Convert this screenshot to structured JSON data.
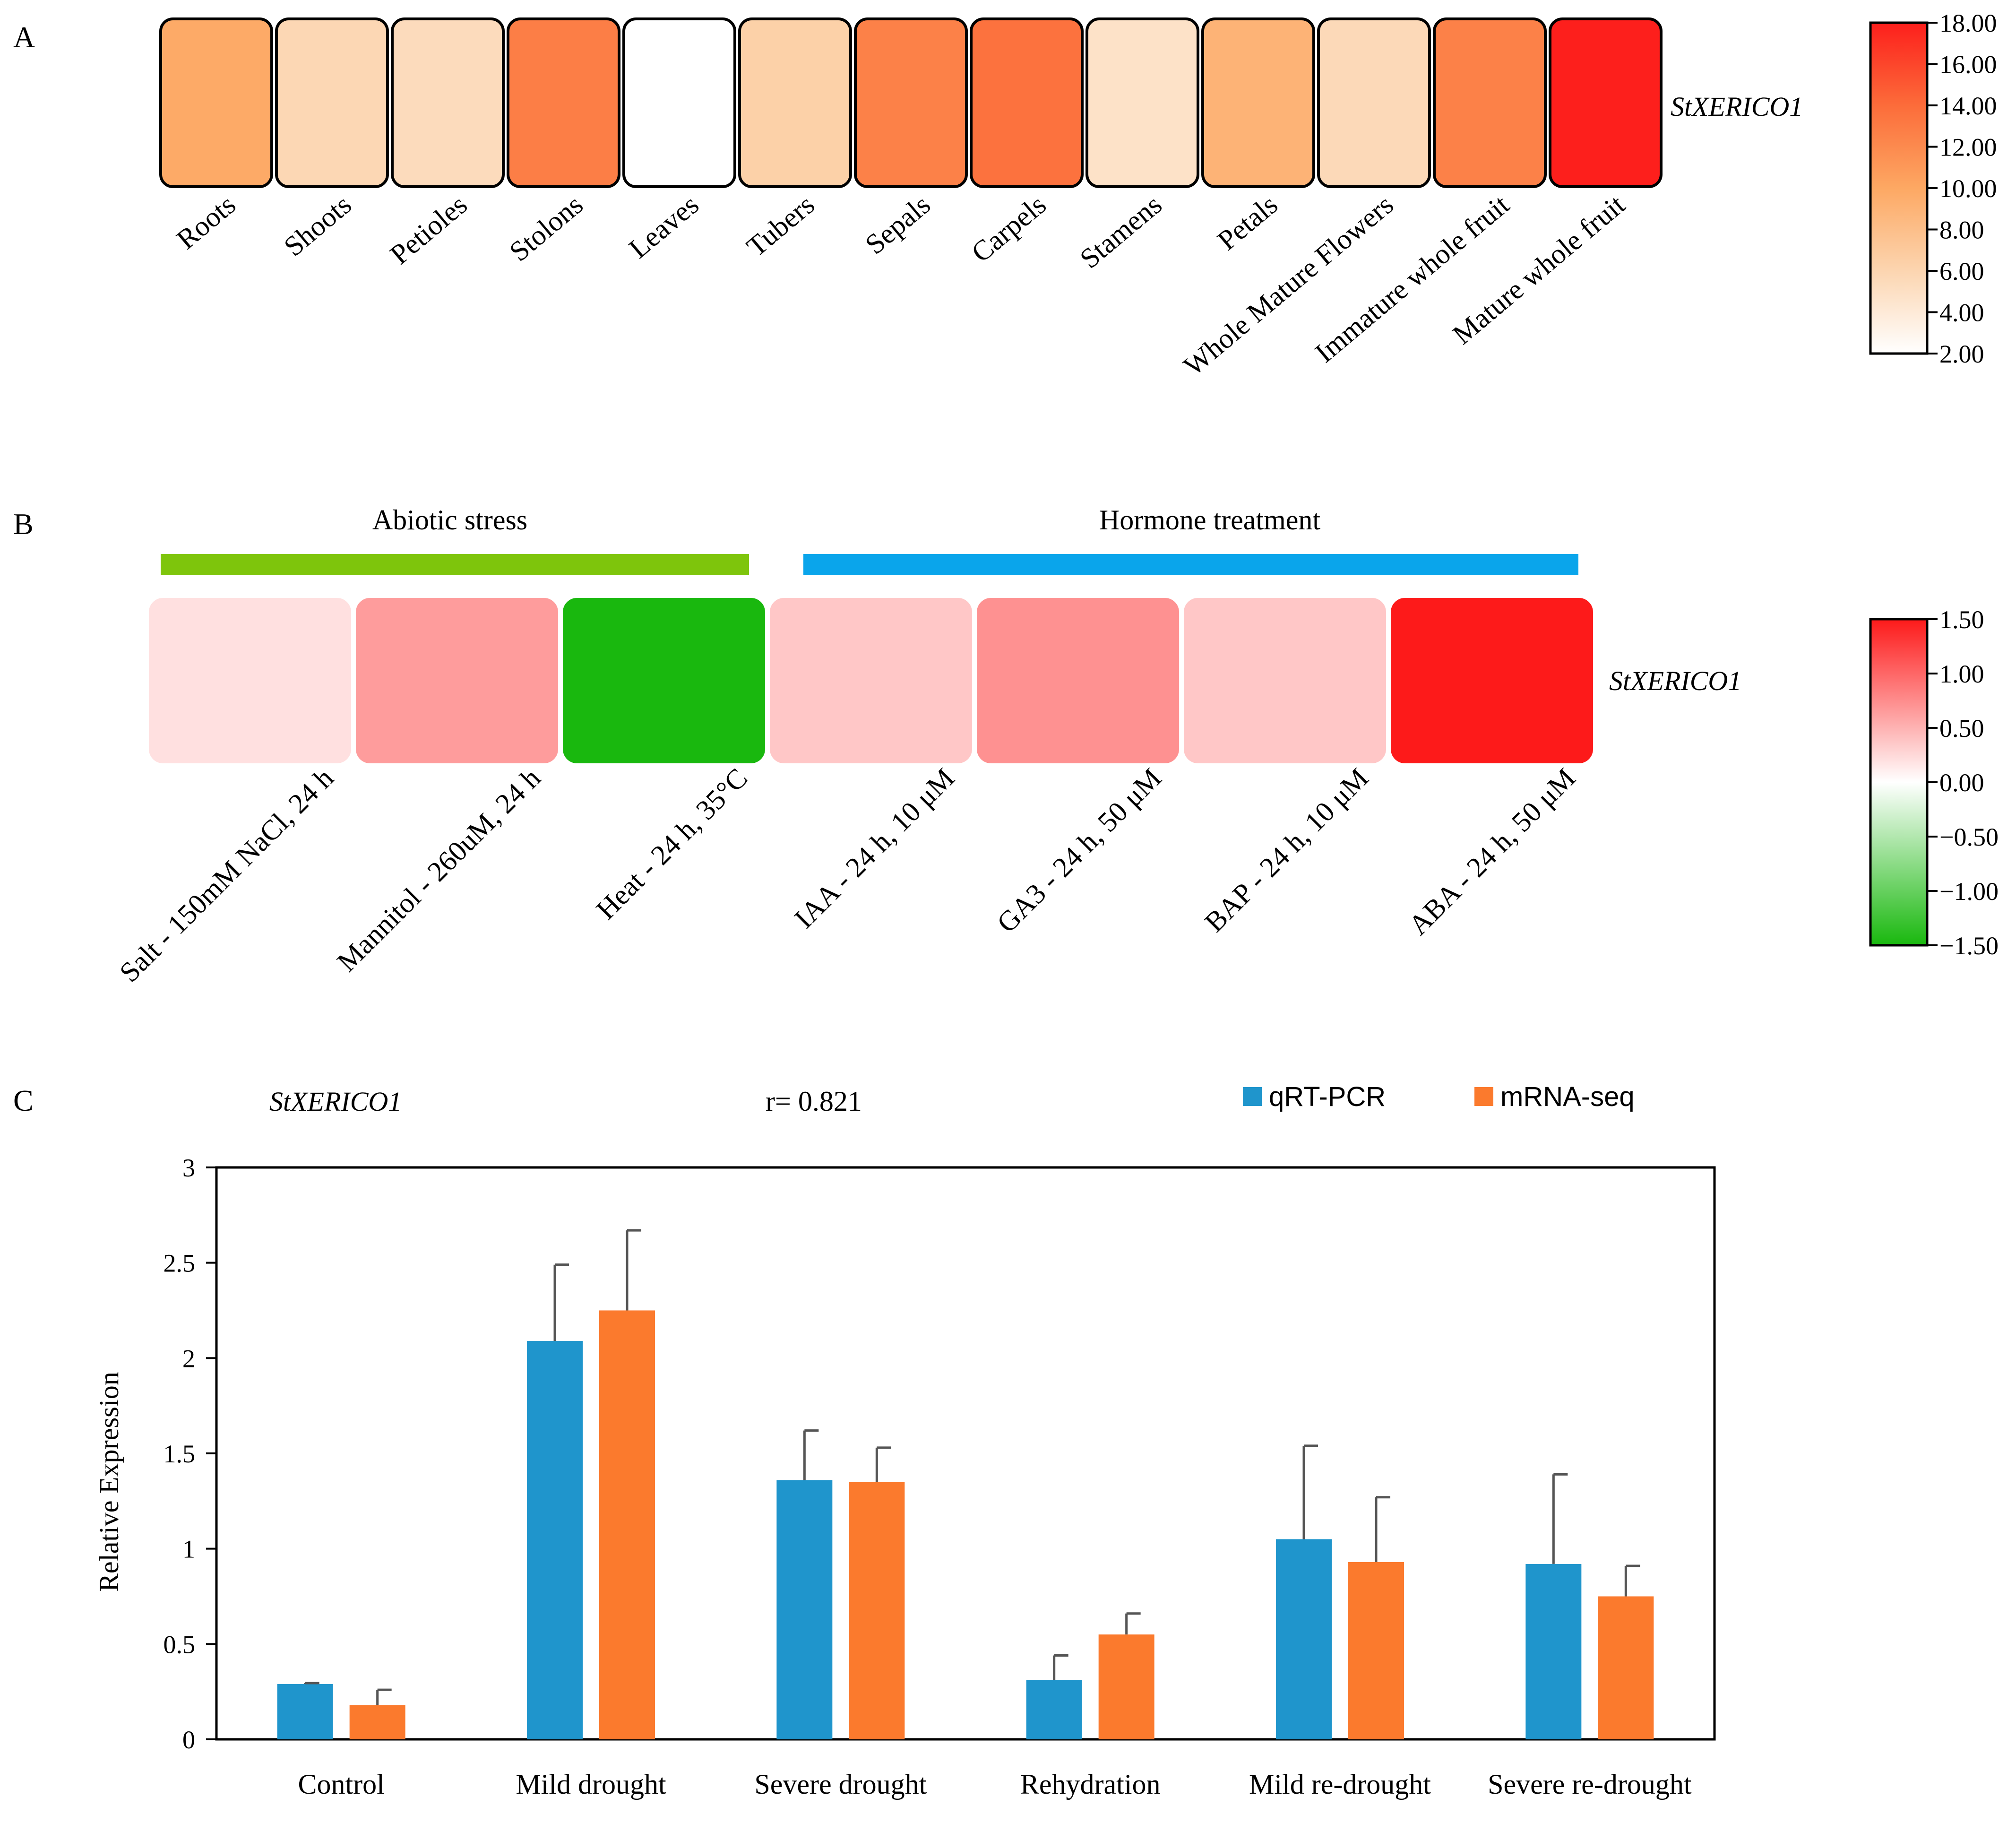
{
  "chart_data": [
    {
      "panel": "A",
      "type": "heatmap",
      "row_label": "StXERICO1",
      "categories": [
        "Roots",
        "Shoots",
        "Petioles",
        "Stolons",
        "Leaves",
        "Tubers",
        "Sepals",
        "Carpels",
        "Stamens",
        "Petals",
        "Whole Mature Flowers",
        "Immature whole fruit",
        "Mature whole fruit"
      ],
      "values": [
        9.8,
        5.8,
        5.4,
        12.8,
        2.0,
        6.4,
        12.6,
        13.6,
        4.8,
        9.0,
        5.6,
        12.6,
        18.0
      ],
      "colorbar": {
        "min": 2,
        "max": 18,
        "ticks": [
          "18.00",
          "16.00",
          "14.00",
          "12.00",
          "10.00",
          "8.00",
          "6.00",
          "4.00",
          "2.00"
        ],
        "colors": [
          "#ffffff",
          "#fcd5b0",
          "#fda863",
          "#fc6c3a",
          "#fd1f1c"
        ]
      }
    },
    {
      "panel": "B",
      "type": "heatmap",
      "row_label": "StXERICO1",
      "groups": [
        {
          "label": "Abiotic stress",
          "color": "#7ec50c"
        },
        {
          "label": "Hormone treatment",
          "color": "#0aa5eb"
        }
      ],
      "categories": [
        "Salt - 150mM NaCl, 24 h",
        "Mannitol - 260uM, 24 h",
        "Heat - 24 h, 35°C",
        "IAA - 24 h, 10 μM",
        "GA3 - 24 h, 50 μM",
        "BAP - 24 h, 10 μM",
        "ABA - 24 h, 50 μM"
      ],
      "values": [
        0.2,
        0.65,
        -1.5,
        0.37,
        0.72,
        0.37,
        1.5
      ],
      "colorbar": {
        "min": -1.5,
        "max": 1.5,
        "ticks": [
          "1.50",
          "1.00",
          "0.50",
          "0.00",
          "−0.50",
          "−1.00",
          "−1.50"
        ],
        "colors": [
          "#19b80e",
          "#ffffff",
          "#fd1a1a"
        ]
      }
    },
    {
      "panel": "C",
      "type": "bar",
      "title": "StXERICO1",
      "annotation": "r= 0.821",
      "xlabel": "",
      "ylabel": "Relative Expression",
      "ylim": [
        0,
        3
      ],
      "yticks": [
        "0",
        "0.5",
        "1",
        "1.5",
        "2",
        "2.5",
        "3"
      ],
      "legend_position": "top-right",
      "categories": [
        "Control",
        "Mild drought",
        "Severe drought",
        "Rehydration",
        "Mild re-drought",
        "Severe re-drought"
      ],
      "series": [
        {
          "name": "qRT-PCR",
          "color": "#1f95cc",
          "values": [
            0.29,
            2.09,
            1.36,
            0.31,
            1.05,
            0.92
          ],
          "errors": [
            0.005,
            0.4,
            0.26,
            0.13,
            0.49,
            0.47
          ]
        },
        {
          "name": "mRNA-seq",
          "color": "#fb7a2d",
          "values": [
            0.18,
            2.25,
            1.35,
            0.55,
            0.93,
            0.75
          ],
          "errors": [
            0.08,
            0.42,
            0.18,
            0.11,
            0.34,
            0.16
          ]
        }
      ]
    }
  ]
}
